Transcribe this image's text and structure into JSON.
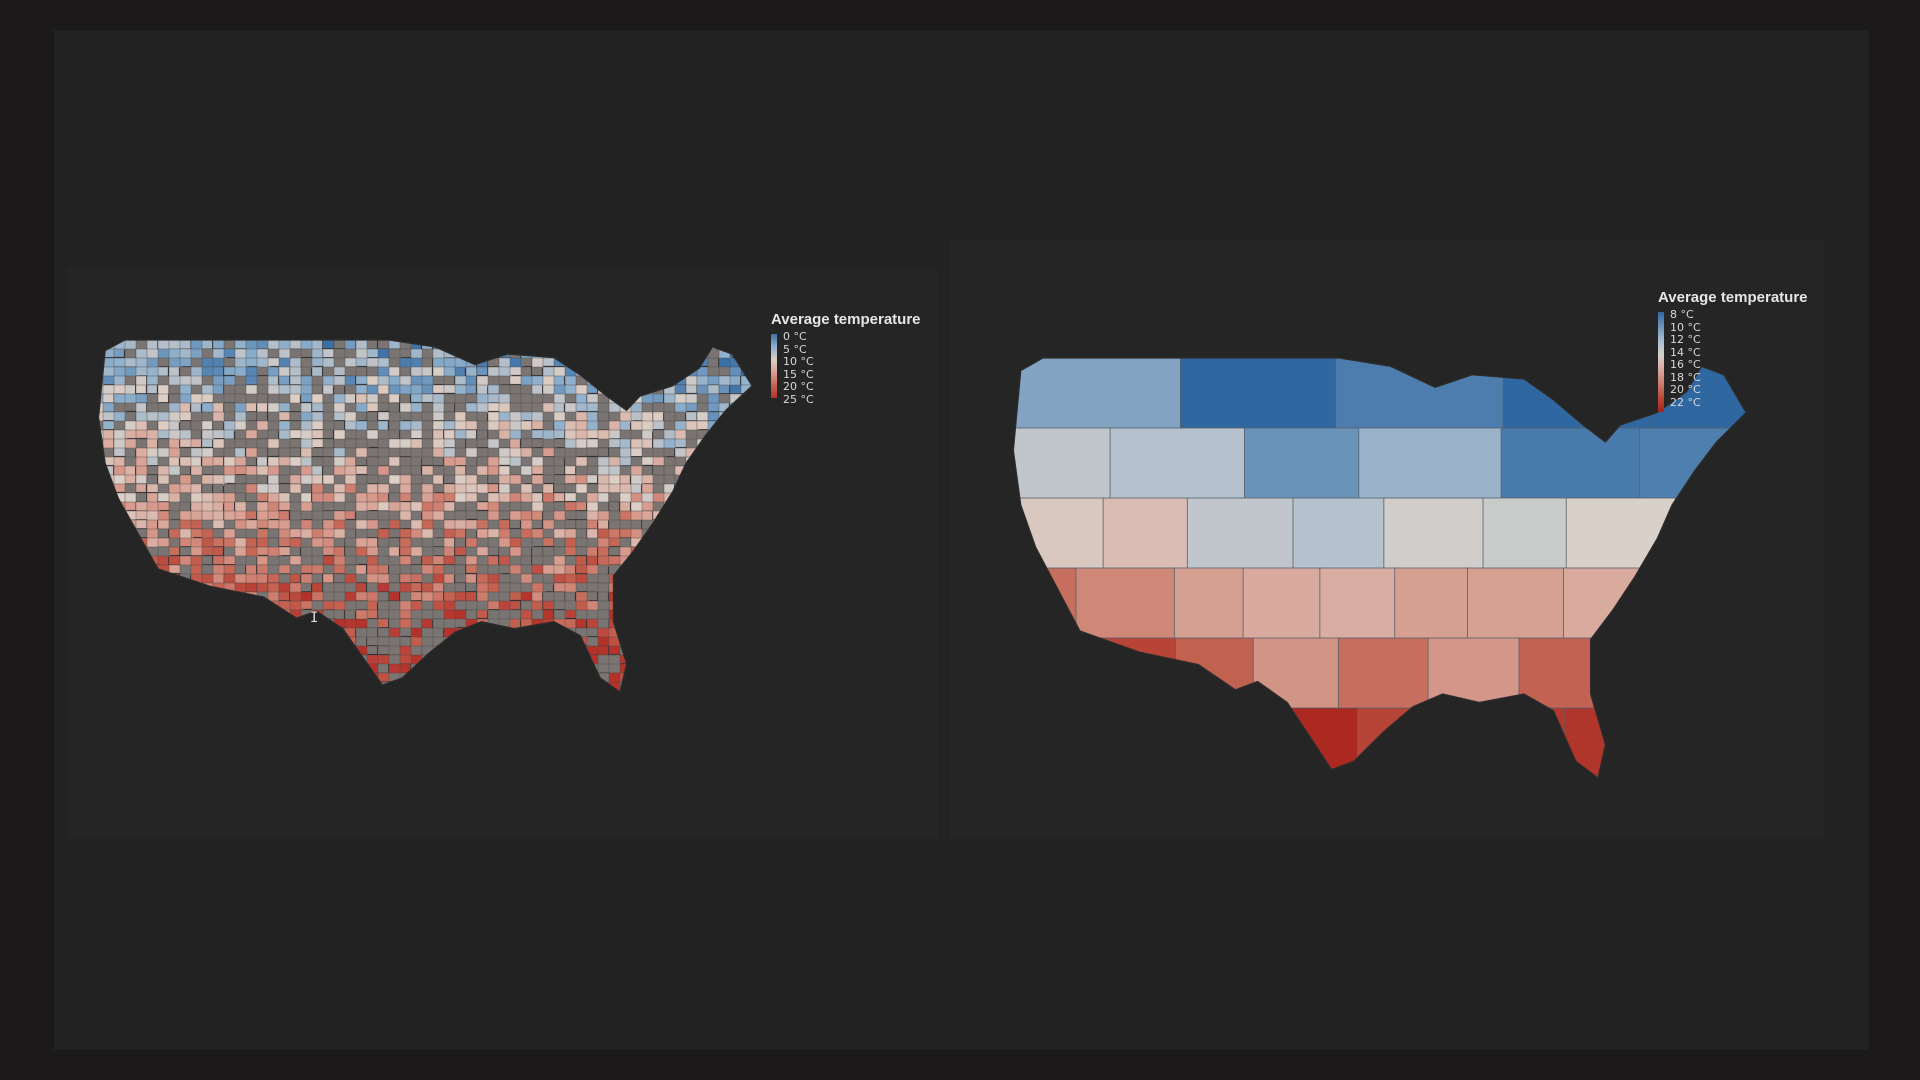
{
  "maps": [
    {
      "id": "county",
      "legend": {
        "title": "Average temperature",
        "ticks": [
          "0 °C",
          "5 °C",
          "10 °C",
          "15 °C",
          "20 °C",
          "25 °C"
        ],
        "colors": [
          "#3a6fa6",
          "#8fb0cc",
          "#dccfc6",
          "#d9a093",
          "#c56453",
          "#b4322a"
        ]
      }
    },
    {
      "id": "state",
      "legend": {
        "title": "Average temperature",
        "ticks": [
          "8 °C",
          "10 °C",
          "12 °C",
          "14 °C",
          "16 °C",
          "18 °C",
          "20 °C",
          "22 °C"
        ],
        "colors": [
          "#2f67a1",
          "#6c94bb",
          "#a9bccd",
          "#d8d0c9",
          "#d9aca0",
          "#cc7e6c",
          "#b9493a",
          "#a8231c"
        ]
      }
    }
  ],
  "colors": {
    "background": "#232222",
    "no_data": "#7a7572",
    "border": "#3a3a3a"
  }
}
